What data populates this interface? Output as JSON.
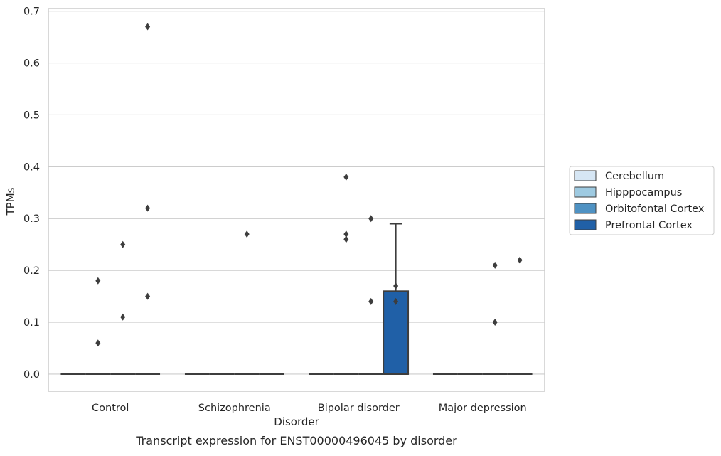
{
  "chart_data": {
    "type": "box",
    "title": "",
    "xlabel": "Disorder",
    "ylabel": "TPMs",
    "caption": "Transcript expression for ENST00000496045 by disorder",
    "ylim": [
      -0.033,
      0.705
    ],
    "yticks": [
      0.0,
      0.1,
      0.2,
      0.3,
      0.4,
      0.5,
      0.6,
      0.7
    ],
    "ytick_labels": [
      "0.0",
      "0.1",
      "0.2",
      "0.3",
      "0.4",
      "0.5",
      "0.6",
      "0.7"
    ],
    "grid": "horizontal",
    "legend_position": "right",
    "categories": [
      "Control",
      "Schizophrenia",
      "Bipolar disorder",
      "Major depression"
    ],
    "series": [
      {
        "name": "Cerebellum",
        "color": "#d6e6f4"
      },
      {
        "name": "Hipppocampus",
        "color": "#9ecae1"
      },
      {
        "name": "Orbitofontal Cortex",
        "color": "#4f92c3"
      },
      {
        "name": "Prefrontal Cortex",
        "color": "#2060a7"
      }
    ],
    "boxes": [
      {
        "category": 0,
        "series": 0,
        "q1": 0,
        "median": 0,
        "q3": 0,
        "whisker_low": 0,
        "whisker_high": 0,
        "outliers": []
      },
      {
        "category": 0,
        "series": 1,
        "q1": 0,
        "median": 0,
        "q3": 0,
        "whisker_low": 0,
        "whisker_high": 0,
        "outliers": [
          0.18,
          0.06
        ]
      },
      {
        "category": 0,
        "series": 2,
        "q1": 0,
        "median": 0,
        "q3": 0,
        "whisker_low": 0,
        "whisker_high": 0,
        "outliers": [
          0.25,
          0.11
        ]
      },
      {
        "category": 0,
        "series": 3,
        "q1": 0,
        "median": 0,
        "q3": 0,
        "whisker_low": 0,
        "whisker_high": 0,
        "outliers": [
          0.67,
          0.32,
          0.15
        ]
      },
      {
        "category": 1,
        "series": 0,
        "q1": 0,
        "median": 0,
        "q3": 0,
        "whisker_low": 0,
        "whisker_high": 0,
        "outliers": []
      },
      {
        "category": 1,
        "series": 1,
        "q1": 0,
        "median": 0,
        "q3": 0,
        "whisker_low": 0,
        "whisker_high": 0,
        "outliers": []
      },
      {
        "category": 1,
        "series": 2,
        "q1": 0,
        "median": 0,
        "q3": 0,
        "whisker_low": 0,
        "whisker_high": 0,
        "outliers": [
          0.27
        ]
      },
      {
        "category": 1,
        "series": 3,
        "q1": 0,
        "median": 0,
        "q3": 0,
        "whisker_low": 0,
        "whisker_high": 0,
        "outliers": []
      },
      {
        "category": 2,
        "series": 0,
        "q1": 0,
        "median": 0,
        "q3": 0,
        "whisker_low": 0,
        "whisker_high": 0,
        "outliers": []
      },
      {
        "category": 2,
        "series": 1,
        "q1": 0,
        "median": 0,
        "q3": 0,
        "whisker_low": 0,
        "whisker_high": 0,
        "outliers": [
          0.38,
          0.27,
          0.26
        ]
      },
      {
        "category": 2,
        "series": 2,
        "q1": 0,
        "median": 0,
        "q3": 0,
        "whisker_low": 0,
        "whisker_high": 0,
        "outliers": [
          0.3,
          0.14
        ]
      },
      {
        "category": 2,
        "series": 3,
        "q1": 0,
        "median": 0,
        "q3": 0.16,
        "whisker_low": 0,
        "whisker_high": 0.29,
        "outliers": [
          0.17,
          0.14
        ]
      },
      {
        "category": 3,
        "series": 0,
        "q1": 0,
        "median": 0,
        "q3": 0,
        "whisker_low": 0,
        "whisker_high": 0,
        "outliers": []
      },
      {
        "category": 3,
        "series": 1,
        "q1": 0,
        "median": 0,
        "q3": 0,
        "whisker_low": 0,
        "whisker_high": 0,
        "outliers": []
      },
      {
        "category": 3,
        "series": 2,
        "q1": 0,
        "median": 0,
        "q3": 0,
        "whisker_low": 0,
        "whisker_high": 0,
        "outliers": [
          0.21,
          0.1
        ]
      },
      {
        "category": 3,
        "series": 3,
        "q1": 0,
        "median": 0,
        "q3": 0,
        "whisker_low": 0,
        "whisker_high": 0,
        "outliers": [
          0.22
        ]
      }
    ]
  }
}
